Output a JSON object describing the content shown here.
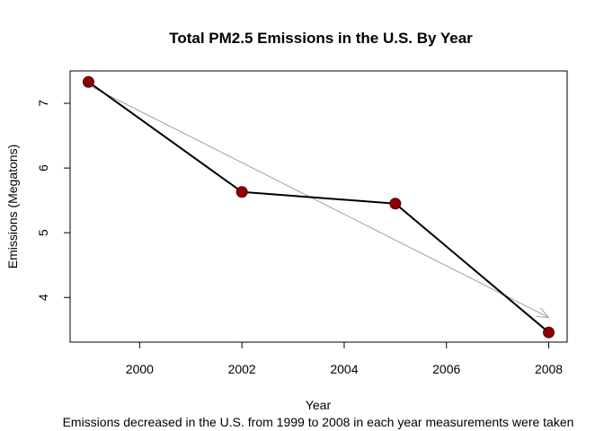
{
  "chart_data": {
    "type": "line",
    "title": "Total PM2.5 Emissions in the U.S. By Year",
    "xlabel": "Year",
    "ylabel": "Emissions  (Megatons)",
    "subtitle": "Emissions decreased in the U.S. from 1999 to 2008 in each year measurements were taken",
    "x": [
      1999,
      2002,
      2005,
      2008
    ],
    "series": [
      {
        "values": [
          7.33,
          5.63,
          5.45,
          3.46
        ]
      }
    ],
    "trend_arrow": {
      "from": [
        1999,
        7.28
      ],
      "to": [
        2008,
        3.69
      ]
    },
    "xlim": [
      1998.64,
      2008.36
    ],
    "ylim": [
      3.31,
      7.5
    ],
    "xticks": [
      2000,
      2002,
      2004,
      2006,
      2008
    ],
    "yticks": [
      4,
      5,
      6,
      7
    ],
    "grid": false,
    "legend": "none",
    "colors": {
      "line": "#000000",
      "point_fill": "#8b0000",
      "point_stroke": "#5a0000",
      "trend": "#a0a0a0"
    }
  }
}
